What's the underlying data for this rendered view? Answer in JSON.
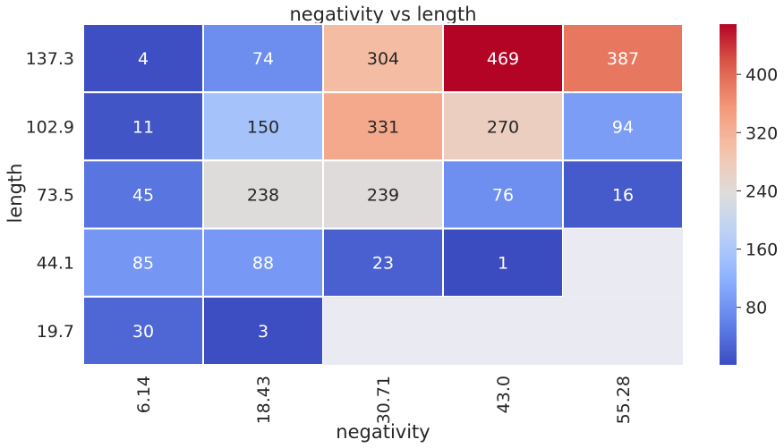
{
  "chart_data": {
    "type": "heatmap",
    "title": "negativity vs length",
    "xlabel": "negativity",
    "ylabel": "length",
    "x_categories": [
      "6.14",
      "18.43",
      "30.71",
      "43.0",
      "55.28"
    ],
    "y_categories": [
      "137.3",
      "102.9",
      "73.5",
      "44.1",
      "19.7"
    ],
    "values": [
      [
        4,
        74,
        304,
        469,
        387
      ],
      [
        11,
        150,
        331,
        270,
        94
      ],
      [
        45,
        238,
        239,
        76,
        16
      ],
      [
        85,
        88,
        23,
        1,
        null
      ],
      [
        30,
        3,
        null,
        null,
        null
      ]
    ],
    "colormap": "coolwarm",
    "vmin": 1,
    "vmax": 469,
    "missing_color": "#eaeaf2",
    "colorbar_ticks": [
      "400",
      "320",
      "240",
      "160",
      "80"
    ]
  }
}
